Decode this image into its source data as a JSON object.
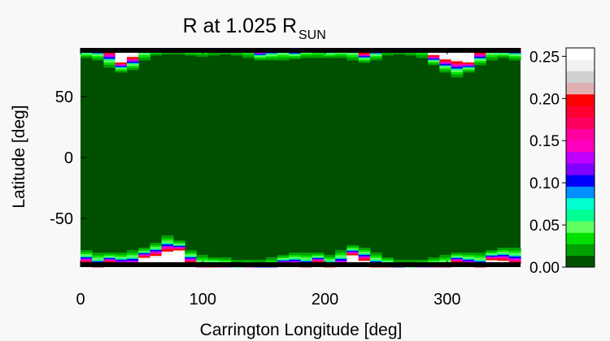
{
  "chart_data": {
    "type": "heatmap",
    "title": "R at 1.025 R",
    "title_subscript": "SUN",
    "xlabel": "Carrington Longitude [deg]",
    "ylabel": "Latitude [deg]",
    "xlim": [
      0,
      360
    ],
    "ylim": [
      -90,
      90
    ],
    "x_ticks": [
      0,
      100,
      200,
      300
    ],
    "y_ticks": [
      50,
      0,
      -50
    ],
    "colorbar": {
      "range": [
        0.0,
        0.26
      ],
      "tick_labels": [
        "0.25",
        "0.20",
        "0.15",
        "0.10",
        "0.05",
        "0.00"
      ],
      "tick_values": [
        0.25,
        0.2,
        0.15,
        0.1,
        0.05,
        0.0
      ],
      "colors": [
        "#005000",
        "#00a000",
        "#00e000",
        "#60ff60",
        "#00ff90",
        "#00ffd0",
        "#0090ff",
        "#0000ff",
        "#8000ff",
        "#c000ff",
        "#ff00c0",
        "#ff00a0",
        "#ff0060",
        "#ff0030",
        "#ff0000",
        "#e0b0b0",
        "#d0d0d0",
        "#f0f0f0",
        "#ffffff"
      ]
    },
    "field": {
      "background_value": 0.0,
      "north_boundary_lat": [
        82,
        80,
        74,
        70,
        72,
        80,
        84,
        85,
        85,
        84,
        83,
        84,
        85,
        84,
        82,
        80,
        80,
        80,
        81,
        82,
        82,
        82,
        82,
        80,
        78,
        80,
        84,
        85,
        84,
        82,
        76,
        70,
        66,
        70,
        76,
        80,
        82,
        80
      ],
      "south_boundary_lat": [
        -76,
        -78,
        -78,
        -78,
        -76,
        -74,
        -70,
        -64,
        -68,
        -76,
        -80,
        -82,
        -82,
        -84,
        -84,
        -84,
        -82,
        -80,
        -78,
        -78,
        -78,
        -80,
        -76,
        -72,
        -74,
        -78,
        -82,
        -84,
        -84,
        -84,
        -82,
        -80,
        -78,
        -78,
        -78,
        -76,
        -74,
        -74
      ]
    }
  }
}
